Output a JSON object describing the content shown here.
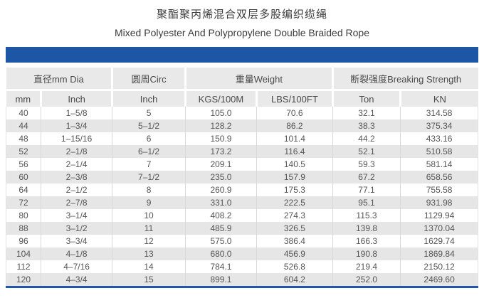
{
  "title": {
    "zh": "聚酯聚丙烯混合双层多股编织缆绳",
    "en": "Mixed Polyester And Polypropylene Double Braided Rope"
  },
  "colors": {
    "accent_blue": "#1d56a5",
    "header_gray": "#e9e9e9",
    "stripe_gray": "#e6e6e6",
    "text_gray": "#4a4a4a"
  },
  "table": {
    "col_groups": [
      {
        "label": "直径mm Dia",
        "span": 2
      },
      {
        "label": "圆周Circ",
        "span": 1
      },
      {
        "label": "重量Weight",
        "span": 2
      },
      {
        "label": "断裂强度Breaking Strength",
        "span": 2
      }
    ],
    "columns": [
      "mm",
      "Inch",
      "Inch",
      "KGS/100M",
      "LBS/100FT",
      "Ton",
      "KN"
    ],
    "rows": [
      [
        "40",
        "1–5/8",
        "5",
        "105.0",
        "70.6",
        "32.1",
        "314.58"
      ],
      [
        "44",
        "1–3/4",
        "5–1/2",
        "128.2",
        "86.2",
        "38.3",
        "375.34"
      ],
      [
        "48",
        "1–15/16",
        "6",
        "150.9",
        "101.4",
        "44.2",
        "433.16"
      ],
      [
        "52",
        "2–1/8",
        "6–1/2",
        "173.2",
        "116.4",
        "52.1",
        "510.58"
      ],
      [
        "56",
        "2–1/4",
        "7",
        "209.1",
        "140.5",
        "59.3",
        "581.14"
      ],
      [
        "60",
        "2–3/8",
        "7–1/2",
        "235.0",
        "157.9",
        "67.2",
        "658.56"
      ],
      [
        "64",
        "2–1/2",
        "8",
        "260.9",
        "175.3",
        "77.1",
        "755.58"
      ],
      [
        "72",
        "2–7/8",
        "9",
        "331.0",
        "222.5",
        "95.1",
        "931.98"
      ],
      [
        "80",
        "3–1/4",
        "10",
        "408.2",
        "274.3",
        "115.3",
        "1129.94"
      ],
      [
        "88",
        "3–1/2",
        "11",
        "485.9",
        "326.5",
        "139.8",
        "1370.04"
      ],
      [
        "96",
        "3–3/4",
        "12",
        "575.0",
        "386.4",
        "166.3",
        "1629.74"
      ],
      [
        "104",
        "4–1/8",
        "13",
        "680.0",
        "456.9",
        "190.8",
        "1869.84"
      ],
      [
        "112",
        "4–7/16",
        "14",
        "784.1",
        "526.8",
        "219.4",
        "2150.12"
      ],
      [
        "120",
        "4–3/4",
        "15",
        "899.1",
        "604.2",
        "252.0",
        "2469.60"
      ]
    ]
  },
  "chart_data": {
    "type": "table",
    "title": "Mixed Polyester And Polypropylene Double Braided Rope",
    "columns": [
      "mm",
      "Inch",
      "Inch",
      "KGS/100M",
      "LBS/100FT",
      "Ton",
      "KN"
    ],
    "rows": [
      [
        "40",
        "1–5/8",
        "5",
        "105.0",
        "70.6",
        "32.1",
        "314.58"
      ],
      [
        "44",
        "1–3/4",
        "5–1/2",
        "128.2",
        "86.2",
        "38.3",
        "375.34"
      ],
      [
        "48",
        "1–15/16",
        "6",
        "150.9",
        "101.4",
        "44.2",
        "433.16"
      ],
      [
        "52",
        "2–1/8",
        "6–1/2",
        "173.2",
        "116.4",
        "52.1",
        "510.58"
      ],
      [
        "56",
        "2–1/4",
        "7",
        "209.1",
        "140.5",
        "59.3",
        "581.14"
      ],
      [
        "60",
        "2–3/8",
        "7–1/2",
        "235.0",
        "157.9",
        "67.2",
        "658.56"
      ],
      [
        "64",
        "2–1/2",
        "8",
        "260.9",
        "175.3",
        "77.1",
        "755.58"
      ],
      [
        "72",
        "2–7/8",
        "9",
        "331.0",
        "222.5",
        "95.1",
        "931.98"
      ],
      [
        "80",
        "3–1/4",
        "10",
        "408.2",
        "274.3",
        "115.3",
        "1129.94"
      ],
      [
        "88",
        "3–1/2",
        "11",
        "485.9",
        "326.5",
        "139.8",
        "1370.04"
      ],
      [
        "96",
        "3–3/4",
        "12",
        "575.0",
        "386.4",
        "166.3",
        "1629.74"
      ],
      [
        "104",
        "4–1/8",
        "13",
        "680.0",
        "456.9",
        "190.8",
        "1869.84"
      ],
      [
        "112",
        "4–7/16",
        "14",
        "784.1",
        "526.8",
        "219.4",
        "2150.12"
      ],
      [
        "120",
        "4–3/4",
        "15",
        "899.1",
        "604.2",
        "252.0",
        "2469.60"
      ]
    ]
  }
}
